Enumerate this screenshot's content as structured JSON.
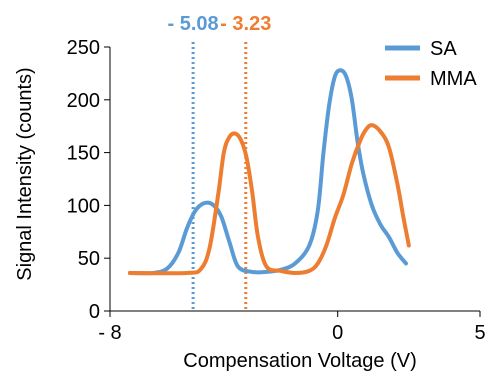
{
  "chart_data": {
    "type": "line",
    "title": "",
    "xlabel": "Compensation Voltage (V)",
    "ylabel": "Signal Intensity (counts)",
    "xlim": [
      -8,
      5
    ],
    "ylim": [
      0,
      250
    ],
    "grid": false,
    "legend_position": "top-right",
    "x_ticks": [
      {
        "value": -8,
        "label": "- 8"
      },
      {
        "value": 0,
        "label": "0"
      },
      {
        "value": 5,
        "label": "5"
      }
    ],
    "y_ticks": [
      0,
      50,
      100,
      150,
      200,
      250
    ],
    "series": [
      {
        "name": "SA",
        "color": "#5B9BD5",
        "points": [
          [
            -7.3,
            36
          ],
          [
            -6.5,
            36
          ],
          [
            -6.0,
            40
          ],
          [
            -5.6,
            55
          ],
          [
            -5.3,
            78
          ],
          [
            -5.0,
            95
          ],
          [
            -4.7,
            102
          ],
          [
            -4.4,
            101
          ],
          [
            -4.1,
            90
          ],
          [
            -3.8,
            65
          ],
          [
            -3.5,
            42
          ],
          [
            -3.0,
            37
          ],
          [
            -2.5,
            37
          ],
          [
            -2.0,
            39
          ],
          [
            -1.5,
            45
          ],
          [
            -1.0,
            62
          ],
          [
            -0.7,
            95
          ],
          [
            -0.5,
            150
          ],
          [
            -0.3,
            195
          ],
          [
            -0.1,
            222
          ],
          [
            0.1,
            228
          ],
          [
            0.3,
            222
          ],
          [
            0.5,
            200
          ],
          [
            0.7,
            160
          ],
          [
            0.9,
            130
          ],
          [
            1.2,
            100
          ],
          [
            1.5,
            82
          ],
          [
            1.8,
            70
          ],
          [
            2.1,
            55
          ],
          [
            2.4,
            45
          ]
        ],
        "line_style": "solid"
      },
      {
        "name": "MMA",
        "color": "#ED7D31",
        "points": [
          [
            -7.3,
            36
          ],
          [
            -5.3,
            36
          ],
          [
            -4.8,
            40
          ],
          [
            -4.5,
            60
          ],
          [
            -4.2,
            110
          ],
          [
            -4.0,
            150
          ],
          [
            -3.8,
            165
          ],
          [
            -3.6,
            168
          ],
          [
            -3.4,
            162
          ],
          [
            -3.2,
            145
          ],
          [
            -3.0,
            112
          ],
          [
            -2.8,
            70
          ],
          [
            -2.5,
            42
          ],
          [
            -2.0,
            38
          ],
          [
            -1.5,
            36
          ],
          [
            -1.0,
            38
          ],
          [
            -0.7,
            45
          ],
          [
            -0.4,
            62
          ],
          [
            -0.1,
            88
          ],
          [
            0.2,
            110
          ],
          [
            0.5,
            140
          ],
          [
            0.8,
            162
          ],
          [
            1.0,
            172
          ],
          [
            1.2,
            176
          ],
          [
            1.5,
            170
          ],
          [
            1.8,
            155
          ],
          [
            2.1,
            120
          ],
          [
            2.3,
            90
          ],
          [
            2.5,
            62
          ]
        ],
        "line_style": "solid"
      }
    ],
    "annotations": [
      {
        "name": "sa-marker",
        "x": -5.08,
        "label": "- 5.08",
        "color": "#5B9BD5",
        "line_style": "dotted"
      },
      {
        "name": "mma-marker",
        "x": -3.23,
        "label": "- 3.23",
        "color": "#ED7D31",
        "line_style": "dotted"
      }
    ]
  }
}
